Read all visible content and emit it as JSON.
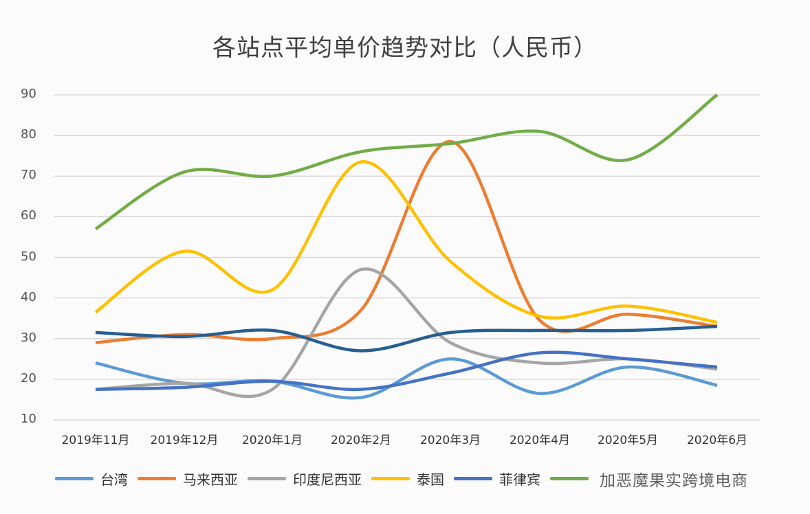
{
  "chart_data": {
    "type": "line",
    "title": "各站点平均单价趋势对比（人民币）",
    "xlabel": "",
    "ylabel": "",
    "ylim": [
      10,
      90
    ],
    "yticks": [
      10,
      20,
      30,
      40,
      50,
      60,
      70,
      80,
      90
    ],
    "grid": true,
    "legend_position": "bottom",
    "categories": [
      "2019年11月",
      "2019年12月",
      "2020年1月",
      "2020年2月",
      "2020年3月",
      "2020年4月",
      "2020年5月",
      "2020年6月"
    ],
    "series": [
      {
        "name": "台湾",
        "color": "#5B9BD5",
        "values": [
          24,
          19,
          19.5,
          15.5,
          25,
          16.5,
          23,
          18.5
        ]
      },
      {
        "name": "马来西亚",
        "color": "#ED7D31",
        "values": [
          29,
          31,
          30,
          37,
          78.5,
          34.5,
          36,
          33
        ]
      },
      {
        "name": "印度尼西亚",
        "color": "#A5A5A5",
        "values": [
          17.5,
          19,
          17.5,
          47,
          29,
          24,
          25,
          22.5
        ]
      },
      {
        "name": "泰国",
        "color": "#FFC000",
        "values": [
          36.5,
          51.5,
          42,
          73.5,
          49,
          35.5,
          38,
          34
        ]
      },
      {
        "name": "菲律宾",
        "color": "#4472C4",
        "values": [
          17.5,
          18,
          19.5,
          17.5,
          21.5,
          26.5,
          25,
          23
        ]
      },
      {
        "name": "加",
        "color": "#70AD47",
        "values": [
          57,
          71,
          70,
          76,
          78,
          81,
          74,
          90
        ]
      },
      {
        "name": "",
        "color": "#255E91",
        "values": [
          31.5,
          30.5,
          32,
          27,
          31.5,
          32,
          32,
          33
        ]
      }
    ]
  },
  "legend": {
    "items": [
      {
        "label": "台湾",
        "color": "#5B9BD5"
      },
      {
        "label": "马来西亚",
        "color": "#ED7D31"
      },
      {
        "label": "印度尼西亚",
        "color": "#A5A5A5"
      },
      {
        "label": "泰国",
        "color": "#FFC000"
      },
      {
        "label": "菲律宾",
        "color": "#4472C4"
      },
      {
        "label": "",
        "color": "#70AD47"
      }
    ]
  },
  "watermark": {
    "text": "加恶魔果实跨境电商"
  }
}
